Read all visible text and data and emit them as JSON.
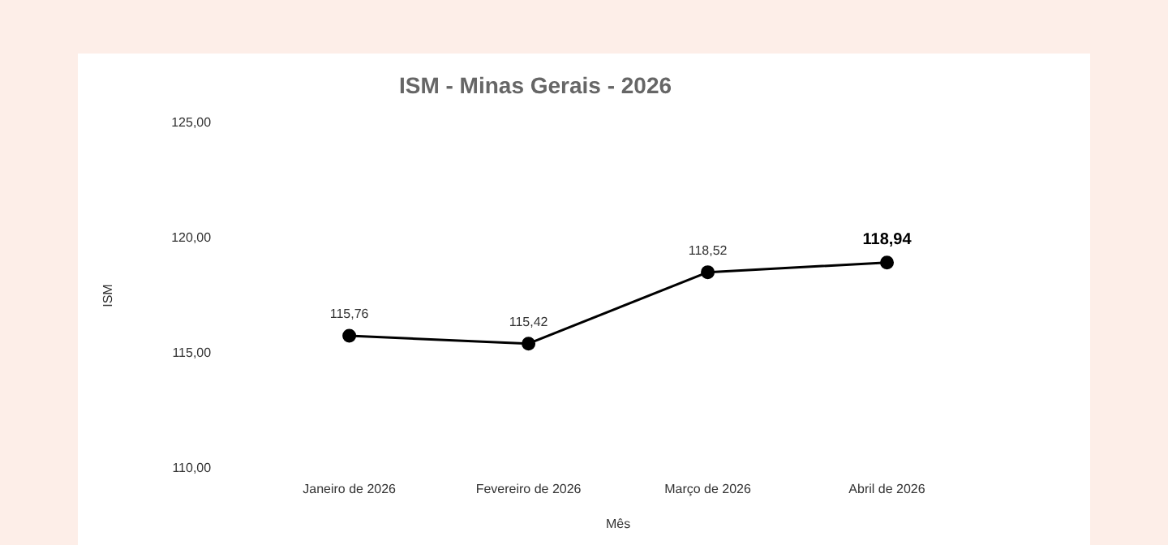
{
  "chart_data": {
    "type": "line",
    "title": "ISM - Minas Gerais - 2026",
    "xlabel": "Mês",
    "ylabel": "ISM",
    "categories": [
      "Janeiro de 2026",
      "Fevereiro de 2026",
      "Março de 2026",
      "Abril de 2026"
    ],
    "series": [
      {
        "color": "#000000",
        "values": [
          115.76,
          115.42,
          118.52,
          118.94
        ],
        "value_labels": [
          "115,76",
          "115,42",
          "118,52",
          "118,94"
        ]
      }
    ],
    "ylim": [
      110,
      125
    ],
    "yticks": [
      {
        "value": 110,
        "label": "110,00"
      },
      {
        "value": 115,
        "label": "115,00"
      },
      {
        "value": 120,
        "label": "120,00"
      },
      {
        "value": 125,
        "label": "125,00"
      }
    ],
    "grid": false,
    "legend": false,
    "marker": "circle",
    "line_style": "solid"
  }
}
